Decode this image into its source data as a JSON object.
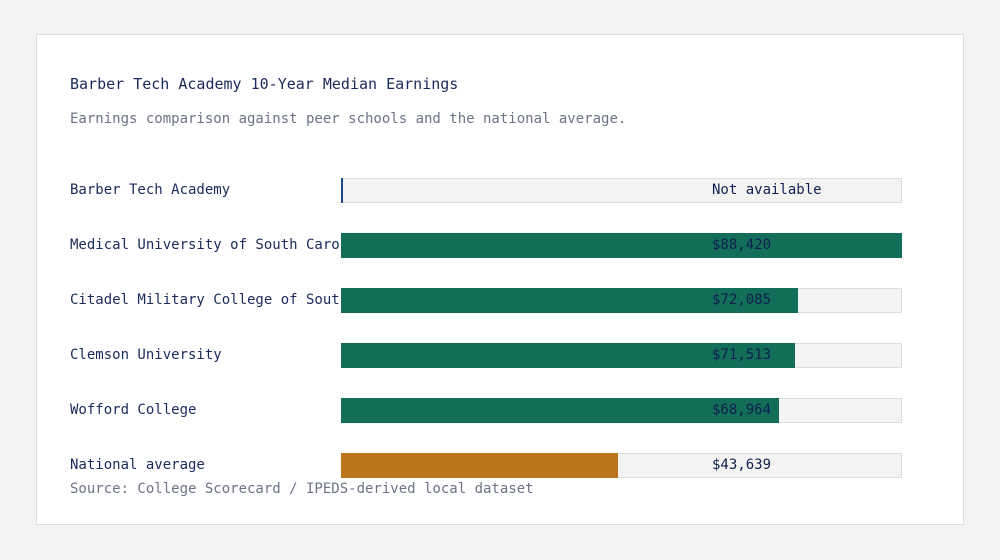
{
  "colors": {
    "page_background": "#f3f3f2",
    "card_background": "#ffffff",
    "school_bar": "#126e58",
    "national_bar": "#bb7518",
    "track": "#f3f3f2",
    "text": "#1a2a5a",
    "muted_text": "#6b7385"
  },
  "chart_data": {
    "type": "bar",
    "orientation": "horizontal",
    "title": "Barber Tech Academy 10-Year Median Earnings",
    "subtitle": "Earnings comparison against peer schools and the national average.",
    "source": "Source: College Scorecard / IPEDS-derived local dataset",
    "xlim": [
      0,
      88420
    ],
    "categories": [
      "Barber Tech Academy",
      "Medical University of South Carolina",
      "Citadel Military College of South Carolina",
      "Clemson University",
      "Wofford College",
      "National average"
    ],
    "values": [
      null,
      88420,
      72085,
      71513,
      68964,
      43639
    ],
    "value_labels": [
      "Not available",
      "$88,420",
      "$72,085",
      "$71,513",
      "$68,964",
      "$43,639"
    ],
    "highlight": [
      "subject",
      "peer",
      "peer",
      "peer",
      "peer",
      "national"
    ]
  }
}
